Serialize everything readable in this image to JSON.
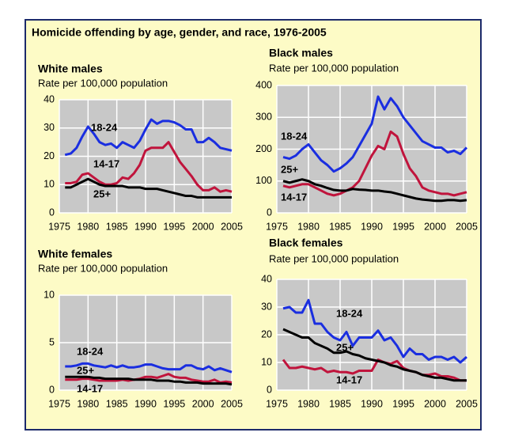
{
  "title": "Homicide offending by age, gender, and race, 1976-2005",
  "chart_data": [
    {
      "type": "line",
      "title": "White males",
      "subtitle": "Rate per 100,000 population",
      "x": [
        1976,
        1977,
        1978,
        1979,
        1980,
        1981,
        1982,
        1983,
        1984,
        1985,
        1986,
        1987,
        1988,
        1989,
        1990,
        1991,
        1992,
        1993,
        1994,
        1995,
        1996,
        1997,
        1998,
        1999,
        2000,
        2001,
        2002,
        2003,
        2004,
        2005
      ],
      "xlim": [
        1975,
        2005
      ],
      "xticks": [
        1975,
        1980,
        1985,
        1990,
        1995,
        2000,
        2005
      ],
      "ylim": [
        0,
        40
      ],
      "yticks": [
        0,
        10,
        20,
        30,
        40
      ],
      "grid": true,
      "series": [
        {
          "name": "18-24",
          "color": "#1a2ee0",
          "values": [
            20.5,
            21,
            23,
            27,
            30.5,
            28,
            25,
            24,
            24.5,
            23,
            25,
            24,
            23,
            25.5,
            29.5,
            33,
            31.5,
            32.5,
            32.5,
            32,
            31,
            29.5,
            29.5,
            25,
            25,
            26.5,
            25,
            23,
            22.5,
            22
          ]
        },
        {
          "name": "14-17",
          "color": "#c0143c",
          "values": [
            10.5,
            10.5,
            11,
            13.5,
            14,
            12.5,
            11,
            10,
            10,
            10.5,
            12.5,
            12,
            14,
            17,
            22,
            23,
            23,
            23,
            25,
            21.5,
            18,
            15.5,
            13,
            10,
            8,
            8,
            9,
            7.5,
            8,
            7.5
          ]
        },
        {
          "name": "25+",
          "color": "#000000",
          "values": [
            9,
            9,
            10,
            11,
            12,
            11,
            10,
            9.5,
            9.5,
            9.5,
            9.5,
            9,
            9,
            9,
            8.5,
            8.5,
            8.5,
            8,
            7.5,
            7,
            6.5,
            6,
            6,
            5.5,
            5.5,
            5.5,
            5.5,
            5.5,
            5.5,
            5.5
          ]
        }
      ]
    },
    {
      "type": "line",
      "title": "Black males",
      "subtitle": "Rate per 100,000 population",
      "x": [
        1976,
        1977,
        1978,
        1979,
        1980,
        1981,
        1982,
        1983,
        1984,
        1985,
        1986,
        1987,
        1988,
        1989,
        1990,
        1991,
        1992,
        1993,
        1994,
        1995,
        1996,
        1997,
        1998,
        1999,
        2000,
        2001,
        2002,
        2003,
        2004,
        2005
      ],
      "xlim": [
        1975,
        2005
      ],
      "xticks": [
        1975,
        1980,
        1985,
        1990,
        1995,
        2000,
        2005
      ],
      "ylim": [
        0,
        400
      ],
      "yticks": [
        0,
        100,
        200,
        300,
        400
      ],
      "grid": true,
      "series": [
        {
          "name": "18-24",
          "color": "#1a2ee0",
          "values": [
            175,
            170,
            180,
            200,
            215,
            190,
            165,
            150,
            130,
            140,
            155,
            175,
            210,
            245,
            280,
            365,
            325,
            360,
            335,
            300,
            275,
            250,
            225,
            215,
            205,
            205,
            190,
            195,
            185,
            205
          ]
        },
        {
          "name": "14-17",
          "color": "#c0143c",
          "values": [
            85,
            80,
            85,
            90,
            90,
            80,
            70,
            60,
            55,
            60,
            70,
            80,
            100,
            140,
            180,
            210,
            200,
            255,
            240,
            185,
            140,
            115,
            80,
            70,
            65,
            60,
            60,
            55,
            60,
            65
          ]
        },
        {
          "name": "25+",
          "color": "#000000",
          "values": [
            100,
            95,
            100,
            105,
            100,
            90,
            85,
            78,
            72,
            70,
            70,
            75,
            73,
            72,
            70,
            70,
            67,
            65,
            60,
            55,
            50,
            45,
            42,
            40,
            38,
            38,
            40,
            40,
            38,
            40
          ]
        }
      ]
    },
    {
      "type": "line",
      "title": "White females",
      "subtitle": "Rate per 100,000 population",
      "x": [
        1976,
        1977,
        1978,
        1979,
        1980,
        1981,
        1982,
        1983,
        1984,
        1985,
        1986,
        1987,
        1988,
        1989,
        1990,
        1991,
        1992,
        1993,
        1994,
        1995,
        1996,
        1997,
        1998,
        1999,
        2000,
        2001,
        2002,
        2003,
        2004,
        2005
      ],
      "xlim": [
        1975,
        2005
      ],
      "xticks": [
        1975,
        1980,
        1985,
        1990,
        1995,
        2000,
        2005
      ],
      "ylim": [
        0,
        10
      ],
      "yticks": [
        0,
        5,
        10
      ],
      "grid": true,
      "series": [
        {
          "name": "18-24",
          "color": "#1a2ee0",
          "values": [
            2.5,
            2.5,
            2.6,
            2.8,
            2.8,
            2.6,
            2.5,
            2.4,
            2.6,
            2.4,
            2.6,
            2.4,
            2.4,
            2.5,
            2.7,
            2.7,
            2.5,
            2.3,
            2.2,
            2.2,
            2.2,
            2.6,
            2.6,
            2.3,
            2.2,
            2.5,
            2.1,
            2.3,
            2.1,
            1.9
          ]
        },
        {
          "name": "14-17",
          "color": "#c0143c",
          "values": [
            1.1,
            1.1,
            1.1,
            1.2,
            1.2,
            1.1,
            1.0,
            1.0,
            1.0,
            1.0,
            1.1,
            1.0,
            1.1,
            1.2,
            1.4,
            1.4,
            1.3,
            1.5,
            1.7,
            1.4,
            1.3,
            1.3,
            1.1,
            1.0,
            0.9,
            0.9,
            1.1,
            0.8,
            0.9,
            0.8
          ]
        },
        {
          "name": "25+",
          "color": "#000000",
          "values": [
            1.4,
            1.4,
            1.4,
            1.4,
            1.4,
            1.3,
            1.3,
            1.2,
            1.2,
            1.2,
            1.2,
            1.2,
            1.1,
            1.1,
            1.1,
            1.1,
            1.0,
            1.0,
            1.0,
            0.9,
            0.9,
            0.8,
            0.8,
            0.8,
            0.7,
            0.7,
            0.7,
            0.7,
            0.7,
            0.6
          ]
        }
      ]
    },
    {
      "type": "line",
      "title": "Black females",
      "subtitle": "Rate per 100,000 population",
      "x": [
        1976,
        1977,
        1978,
        1979,
        1980,
        1981,
        1982,
        1983,
        1984,
        1985,
        1986,
        1987,
        1988,
        1989,
        1990,
        1991,
        1992,
        1993,
        1994,
        1995,
        1996,
        1997,
        1998,
        1999,
        2000,
        2001,
        2002,
        2003,
        2004,
        2005
      ],
      "xlim": [
        1975,
        2005
      ],
      "xticks": [
        1975,
        1980,
        1985,
        1990,
        1995,
        2000,
        2005
      ],
      "ylim": [
        0,
        40
      ],
      "yticks": [
        0,
        10,
        20,
        30,
        40
      ],
      "grid": true,
      "series": [
        {
          "name": "18-24",
          "color": "#1a2ee0",
          "values": [
            29.5,
            30,
            28,
            28,
            32.5,
            24,
            24,
            21,
            19,
            18,
            21,
            16,
            19,
            19,
            19,
            21.5,
            18,
            19,
            16,
            12,
            15,
            13,
            13,
            11,
            12,
            12,
            11,
            12,
            10,
            12
          ]
        },
        {
          "name": "14-17",
          "color": "#c0143c",
          "values": [
            11,
            8,
            8,
            8.5,
            8,
            7.5,
            8,
            6.5,
            7,
            6.5,
            6.5,
            6,
            7,
            7,
            7,
            11,
            10,
            9.5,
            10.5,
            8,
            7,
            6.5,
            5.5,
            5.5,
            6,
            5,
            5,
            4.5,
            3.5,
            3.5
          ]
        },
        {
          "name": "25+",
          "color": "#000000",
          "values": [
            22,
            21,
            20,
            19,
            19,
            17,
            16,
            15,
            13.5,
            13.5,
            14,
            13,
            12.5,
            11.5,
            11,
            10.5,
            10,
            9,
            8.5,
            7.5,
            7,
            6.5,
            5.5,
            5,
            4.5,
            4.5,
            4,
            3.5,
            3.5,
            3.5
          ]
        }
      ]
    }
  ]
}
